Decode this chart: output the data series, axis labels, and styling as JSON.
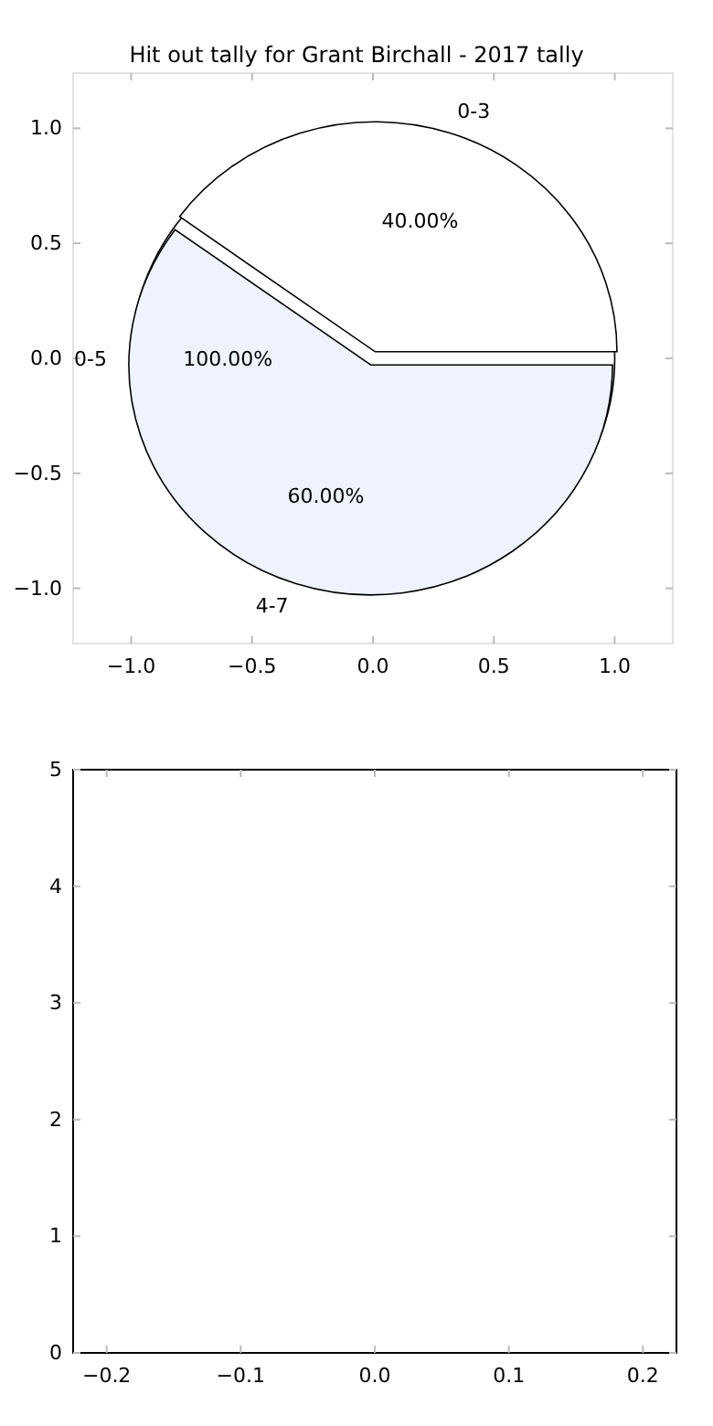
{
  "chart_data": [
    {
      "type": "scatter",
      "title": "Hit out tally for Grant Birchall - 2017 tally",
      "xlim": [
        -1.24,
        1.24
      ],
      "ylim": [
        -1.24,
        1.24
      ],
      "xticks": [
        {
          "value": -1,
          "label": "−1.0"
        },
        {
          "value": -0.5,
          "label": "−0.5"
        },
        {
          "value": 0,
          "label": "0.0"
        },
        {
          "value": 0.5,
          "label": "0.5"
        },
        {
          "value": 1,
          "label": "1.0"
        }
      ],
      "yticks": [
        {
          "value": -1,
          "label": "−1.0"
        },
        {
          "value": -0.5,
          "label": "−0.5"
        },
        {
          "value": 0,
          "label": "0.0"
        },
        {
          "value": 0.5,
          "label": "0.5"
        },
        {
          "value": 1,
          "label": "1.0"
        }
      ]
    },
    {
      "type": "pie",
      "categories": [
        "0-5"
      ],
      "values": [
        100
      ],
      "colors": [
        "#ffffff"
      ],
      "value_labels": [
        "100.00%"
      ]
    },
    {
      "type": "pie",
      "categories": [
        "0-3",
        "4-7"
      ],
      "values": [
        40,
        60
      ],
      "colors": [
        "#ffffff",
        "#eef3ff"
      ],
      "value_labels": [
        "40.00%",
        "60.00%"
      ]
    },
    {
      "type": "scatter",
      "xlim": [
        -0.225,
        0.225
      ],
      "ylim": [
        0,
        5
      ],
      "xticks": [
        {
          "value": -0.2,
          "label": "−0.2"
        },
        {
          "value": -0.1,
          "label": "−0.1"
        },
        {
          "value": 0,
          "label": "0.0"
        },
        {
          "value": 0.1,
          "label": "0.1"
        },
        {
          "value": 0.2,
          "label": "0.2"
        }
      ],
      "yticks": [
        0,
        1,
        2,
        3,
        4,
        5
      ]
    }
  ]
}
